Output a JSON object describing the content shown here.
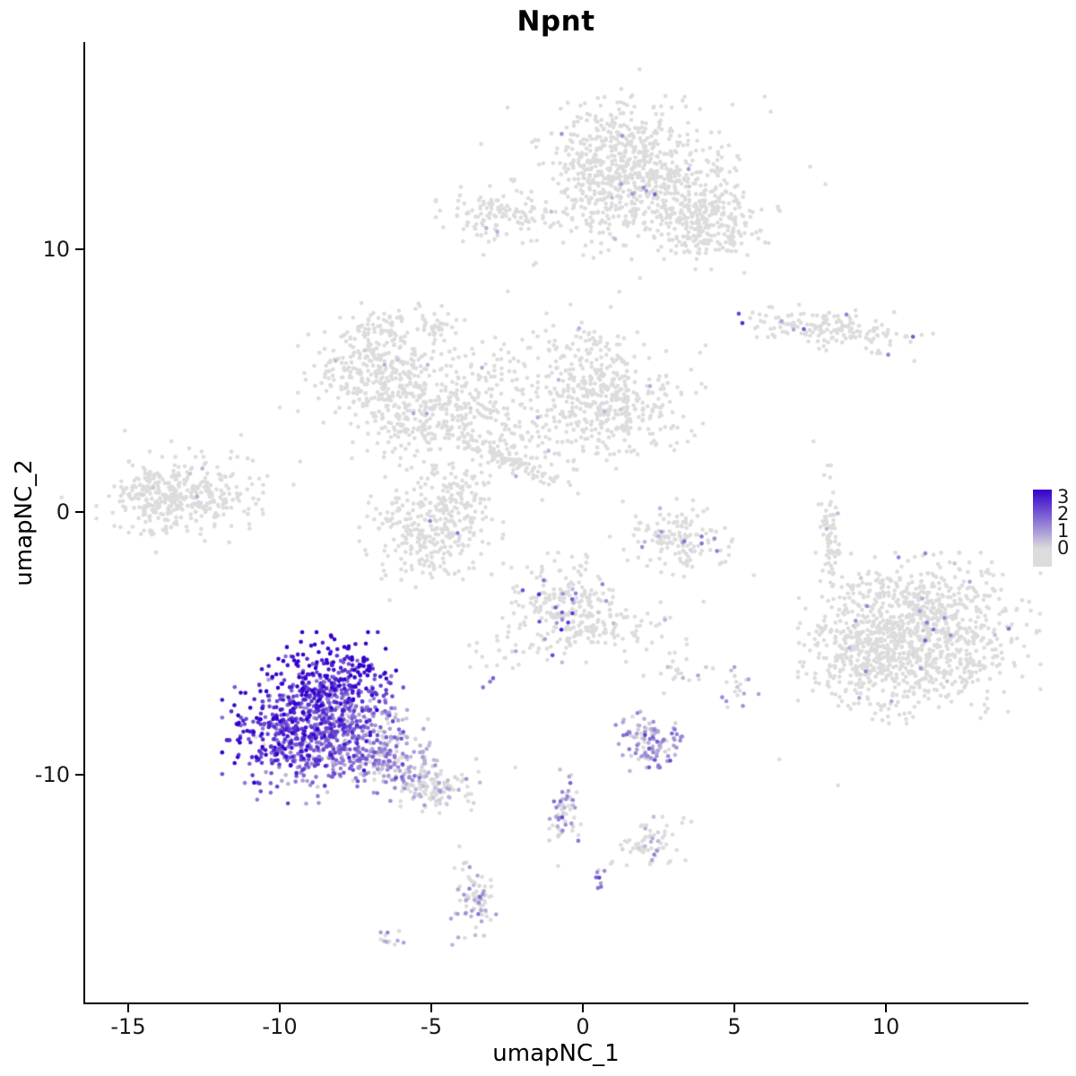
{
  "chart_data": {
    "type": "scatter",
    "title": "Npnt",
    "xlabel": "umapNC_1",
    "ylabel": "umapNC_2",
    "x_ticks": [
      -15,
      -10,
      -5,
      0,
      5,
      10
    ],
    "y_ticks": [
      -10,
      0,
      10
    ],
    "xlim": [
      -16.4,
      14.6
    ],
    "ylim": [
      -18.7,
      17.9
    ],
    "grid": false,
    "point_radius": 2.3,
    "seed": 42,
    "colorscale": {
      "low": "#dcdcdc",
      "high": "#3300cc",
      "min": 0,
      "max": 3
    },
    "legend": {
      "position": "right",
      "ticks": [
        3,
        2,
        1,
        0
      ]
    },
    "clusters": [
      {
        "name": "top-main-a",
        "cx": 1.2,
        "cy": 13.6,
        "sx": 1.1,
        "sy": 1.0,
        "rot": 0,
        "n": 330,
        "p": 0.02,
        "mean": 0.8,
        "sd": 0.4
      },
      {
        "name": "top-main-b",
        "cx": 2.6,
        "cy": 12.2,
        "sx": 1.2,
        "sy": 0.9,
        "rot": 0,
        "n": 280,
        "p": 0.02,
        "mean": 0.8,
        "sd": 0.4
      },
      {
        "name": "top-main-c",
        "cx": 4.3,
        "cy": 10.9,
        "sx": 0.8,
        "sy": 0.7,
        "rot": -20,
        "n": 190,
        "p": 0.02,
        "mean": 0.8,
        "sd": 0.4
      },
      {
        "name": "top-main-d",
        "cx": 0.4,
        "cy": 12.0,
        "sx": 0.7,
        "sy": 0.9,
        "rot": 0,
        "n": 120,
        "p": 0.02,
        "mean": 0.6,
        "sd": 0.3
      },
      {
        "name": "top-main-halo",
        "cx": 2.0,
        "cy": 12.6,
        "sx": 2.2,
        "sy": 1.7,
        "rot": 0,
        "n": 140,
        "p": 0.02,
        "mean": 0.6,
        "sd": 0.3
      },
      {
        "name": "top-left-small",
        "cx": -2.6,
        "cy": 11.4,
        "sx": 0.9,
        "sy": 0.5,
        "rot": 0,
        "n": 130,
        "p": 0.01,
        "mean": 0.5,
        "sd": 0.2
      },
      {
        "name": "blob-upper-mid",
        "cx": -4.9,
        "cy": 7.1,
        "sx": 0.4,
        "sy": 0.3,
        "rot": 0,
        "n": 35,
        "p": 0,
        "mean": 0,
        "sd": 0
      },
      {
        "name": "right-strand-top",
        "cx": 8.3,
        "cy": 7.0,
        "sx": 1.3,
        "sy": 0.35,
        "rot": -8,
        "n": 170,
        "p": 0.04,
        "mean": 1.2,
        "sd": 0.6
      },
      {
        "name": "mid-left-a",
        "cx": -6.9,
        "cy": 5.4,
        "sx": 1.0,
        "sy": 0.8,
        "rot": 0,
        "n": 280,
        "p": 0.01,
        "mean": 0.5,
        "sd": 0.3
      },
      {
        "name": "mid-left-b",
        "cx": -5.6,
        "cy": 3.6,
        "sx": 0.85,
        "sy": 0.8,
        "rot": 0,
        "n": 190,
        "p": 0.01,
        "mean": 0.5,
        "sd": 0.3
      },
      {
        "name": "mid-sparse",
        "cx": -3.7,
        "cy": 4.7,
        "sx": 1.0,
        "sy": 0.9,
        "rot": 0,
        "n": 130,
        "p": 0.01,
        "mean": 0.5,
        "sd": 0.3
      },
      {
        "name": "mid-center",
        "cx": 0.8,
        "cy": 4.0,
        "sx": 1.3,
        "sy": 0.95,
        "rot": 0,
        "n": 400,
        "p": 0.01,
        "mean": 0.5,
        "sd": 0.3
      },
      {
        "name": "mid-bridge",
        "cx": -2.9,
        "cy": 3.1,
        "sx": 1.2,
        "sy": 0.6,
        "rot": -15,
        "n": 110,
        "p": 0.01,
        "mean": 0.4,
        "sd": 0.2
      },
      {
        "name": "diag-strand",
        "cx": -2.3,
        "cy": 1.9,
        "sx": 1.1,
        "sy": 0.18,
        "rot": -28,
        "n": 90,
        "p": 0,
        "mean": 0,
        "sd": 0
      },
      {
        "name": "mid-top-sparse",
        "cx": -6.4,
        "cy": 6.7,
        "sx": 0.9,
        "sy": 0.5,
        "rot": 0,
        "n": 60,
        "p": 0,
        "mean": 0,
        "sd": 0
      },
      {
        "name": "mid-center-top",
        "cx": -0.2,
        "cy": 5.9,
        "sx": 0.8,
        "sy": 0.8,
        "rot": 0,
        "n": 90,
        "p": 0.01,
        "mean": 0.4,
        "sd": 0.2
      },
      {
        "name": "left-cluster",
        "cx": -13.3,
        "cy": 0.6,
        "sx": 1.1,
        "sy": 0.6,
        "rot": 0,
        "n": 300,
        "p": 0.01,
        "mean": 0.4,
        "sd": 0.2
      },
      {
        "name": "left-cluster-halo",
        "cx": -13.2,
        "cy": 0.7,
        "sx": 1.6,
        "sy": 1.0,
        "rot": 0,
        "n": 90,
        "p": 0,
        "mean": 0,
        "sd": 0
      },
      {
        "name": "center-cluster",
        "cx": -5.0,
        "cy": -0.6,
        "sx": 0.95,
        "sy": 0.95,
        "rot": 0,
        "n": 300,
        "p": 0.02,
        "mean": 0.7,
        "sd": 0.4
      },
      {
        "name": "center-cluster-ext",
        "cx": -4.1,
        "cy": 0.8,
        "sx": 0.6,
        "sy": 0.5,
        "rot": 0,
        "n": 60,
        "p": 0.01,
        "mean": 0.4,
        "sd": 0.2
      },
      {
        "name": "small-right-mid",
        "cx": 3.2,
        "cy": -1.0,
        "sx": 0.8,
        "sy": 0.6,
        "rot": 0,
        "n": 140,
        "p": 0.12,
        "mean": 0.9,
        "sd": 0.5
      },
      {
        "name": "vert-strand",
        "cx": 8.1,
        "cy": -0.6,
        "sx": 0.16,
        "sy": 0.95,
        "rot": 0,
        "n": 70,
        "p": 0.04,
        "mean": 1.5,
        "sd": 0.6
      },
      {
        "name": "big-right-a",
        "cx": 11.1,
        "cy": -4.8,
        "sx": 1.6,
        "sy": 1.3,
        "rot": 0,
        "n": 850,
        "p": 0.02,
        "mean": 0.8,
        "sd": 0.5
      },
      {
        "name": "big-right-b",
        "cx": 9.1,
        "cy": -5.4,
        "sx": 0.8,
        "sy": 1.0,
        "rot": 0,
        "n": 220,
        "p": 0.02,
        "mean": 0.6,
        "sd": 0.4
      },
      {
        "name": "big-right-top",
        "cx": 10.6,
        "cy": -3.1,
        "sx": 1.3,
        "sy": 0.5,
        "rot": 0,
        "n": 110,
        "p": 0.01,
        "mean": 0.6,
        "sd": 0.3
      },
      {
        "name": "center-low",
        "cx": -0.7,
        "cy": -3.6,
        "sx": 0.85,
        "sy": 0.85,
        "rot": 0,
        "n": 220,
        "p": 0.1,
        "mean": 1.3,
        "sd": 0.8
      },
      {
        "name": "center-low-ext",
        "cx": 0.5,
        "cy": -4.4,
        "sx": 0.7,
        "sy": 0.4,
        "rot": 0,
        "n": 70,
        "p": 0.06,
        "mean": 0.9,
        "sd": 0.5
      },
      {
        "name": "center-low-trail",
        "cx": -2.5,
        "cy": -5.2,
        "sx": 0.5,
        "sy": 0.5,
        "rot": 0,
        "n": 20,
        "p": 0.1,
        "mean": 1.0,
        "sd": 0.5
      },
      {
        "name": "npnt-core-a",
        "cx": -9.4,
        "cy": -8.6,
        "sx": 1.0,
        "sy": 1.0,
        "rot": 0,
        "n": 480,
        "p": 0.96,
        "mean": 2.0,
        "sd": 0.6,
        "gx": -0.3,
        "gy": 0.3
      },
      {
        "name": "npnt-core-b",
        "cx": -8.3,
        "cy": -6.7,
        "sx": 0.95,
        "sy": 0.85,
        "rot": 0,
        "n": 360,
        "p": 0.96,
        "mean": 2.2,
        "sd": 0.6,
        "gy": 0.5
      },
      {
        "name": "npnt-core-c",
        "cx": -7.3,
        "cy": -8.7,
        "sx": 0.9,
        "sy": 0.8,
        "rot": 0,
        "n": 260,
        "p": 0.9,
        "mean": 1.4,
        "sd": 0.6,
        "gx": -0.4
      },
      {
        "name": "npnt-tail",
        "cx": -6.0,
        "cy": -9.8,
        "sx": 0.95,
        "sy": 0.5,
        "rot": -18,
        "n": 150,
        "p": 0.7,
        "mean": 0.8,
        "sd": 0.5,
        "gx": -0.4
      },
      {
        "name": "npnt-tail-end",
        "cx": -4.9,
        "cy": -10.6,
        "sx": 0.55,
        "sy": 0.35,
        "rot": -15,
        "n": 80,
        "p": 0.45,
        "mean": 0.5,
        "sd": 0.3
      },
      {
        "name": "lavender-small",
        "cx": 2.3,
        "cy": -8.8,
        "sx": 0.5,
        "sy": 0.48,
        "rot": 0,
        "n": 110,
        "p": 0.85,
        "mean": 0.9,
        "sd": 0.5
      },
      {
        "name": "trail-mid-low",
        "cx": -0.6,
        "cy": -11.6,
        "sx": 0.28,
        "sy": 0.75,
        "rot": 0,
        "n": 60,
        "p": 0.6,
        "mean": 0.9,
        "sd": 0.5
      },
      {
        "name": "small-grey-low",
        "cx": 2.3,
        "cy": -12.6,
        "sx": 0.55,
        "sy": 0.4,
        "rot": 0,
        "n": 70,
        "p": 0.08,
        "mean": 0.6,
        "sd": 0.3
      },
      {
        "name": "low-left-mixed",
        "cx": -3.6,
        "cy": -14.6,
        "sx": 0.35,
        "sy": 0.75,
        "rot": 0,
        "n": 80,
        "p": 0.5,
        "mean": 0.8,
        "sd": 0.4
      },
      {
        "name": "tiny-bottom",
        "cx": -6.3,
        "cy": -16.3,
        "sx": 0.32,
        "sy": 0.14,
        "rot": 0,
        "n": 12,
        "p": 0.7,
        "mean": 0.8,
        "sd": 0.3
      },
      {
        "name": "tiny-pair",
        "cx": 0.5,
        "cy": -13.9,
        "sx": 0.12,
        "sy": 0.3,
        "rot": 0,
        "n": 8,
        "p": 0.8,
        "mean": 1.4,
        "sd": 0.4
      },
      {
        "name": "dots-right-low-a",
        "cx": 5.1,
        "cy": -6.6,
        "sx": 0.28,
        "sy": 0.38,
        "rot": 0,
        "n": 18,
        "p": 0.5,
        "mean": 0.8,
        "sd": 0.4
      },
      {
        "name": "dots-right-low-b",
        "cx": 3.2,
        "cy": -5.9,
        "sx": 0.5,
        "sy": 0.4,
        "rot": 0,
        "n": 22,
        "p": 0.2,
        "mean": 0.6,
        "sd": 0.3
      },
      {
        "name": "dots-scatter-mid",
        "cx": 2.6,
        "cy": -4.4,
        "sx": 0.6,
        "sy": 0.5,
        "rot": 0,
        "n": 14,
        "p": 0.1,
        "mean": 0.5,
        "sd": 0.2
      },
      {
        "name": "single-purple",
        "cx": -3.1,
        "cy": -6.4,
        "sx": 0.15,
        "sy": 0.15,
        "rot": 0,
        "n": 3,
        "p": 0.9,
        "mean": 1.8,
        "sd": 0.4
      },
      {
        "name": "sparse-singles",
        "cx": 0.0,
        "cy": 0.0,
        "sx": 7.5,
        "sy": 6.5,
        "rot": 0,
        "n": 30,
        "p": 0.03,
        "mean": 0.5,
        "sd": 0.3
      }
    ]
  }
}
